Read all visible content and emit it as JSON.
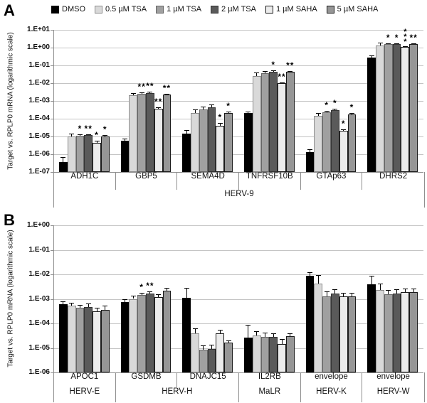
{
  "chart_data": [
    {
      "type": "bar",
      "panel_label": "A",
      "ylabel": "Target vs. RPLP0 mRNA (logarithmic scale)",
      "log_scale": true,
      "ylim_exp": [
        -7,
        1
      ],
      "grid": true,
      "legend_position": "top",
      "ytick_labels": [
        "1.E+01",
        "1.E+00",
        "1.E-01",
        "1.E-02",
        "1.E-03",
        "1.E-04",
        "1.E-05",
        "1.E-06",
        "1.E-07"
      ],
      "categories": [
        "ADH1C",
        "GBP5",
        "SEMA4D",
        "TNFRSF10B",
        "GTAp63",
        "DHRS2"
      ],
      "families": [
        {
          "label": "HERV-9",
          "cols": 6
        }
      ],
      "series": [
        {
          "name": "DMSO",
          "color": "#000000",
          "edge": "#000000",
          "values": [
            3.5e-07,
            6e-06,
            1.5e-05,
            0.00021,
            1.3e-06,
            0.27
          ],
          "err": [
            1.9,
            1.3,
            1.55,
            1.2,
            1.5,
            1.35
          ],
          "stars": [
            "",
            "",
            "",
            "",
            "",
            ""
          ]
        },
        {
          "name": "0.5 µM TSA",
          "color": "#d9d9d9",
          "edge": "#8c8c8c",
          "values": [
            1e-05,
            0.002,
            0.00021,
            0.025,
            0.00014,
            1.35
          ],
          "err": [
            1.5,
            1.35,
            1.55,
            1.55,
            1.45,
            1.45
          ],
          "stars": [
            "",
            "",
            "",
            "",
            "",
            ""
          ]
        },
        {
          "name": "1 µM TSA",
          "color": "#a0a0a0",
          "edge": "#666666",
          "values": [
            1.1e-05,
            0.0025,
            0.00033,
            0.037,
            0.00022,
            1.55
          ],
          "err": [
            1.25,
            1.2,
            1.4,
            1.3,
            1.3,
            1.15
          ],
          "stars": [
            "*",
            "**",
            "",
            "",
            "*",
            "*"
          ]
        },
        {
          "name": "2 µM TSA",
          "color": "#5a5a5a",
          "edge": "#333333",
          "values": [
            1.2e-05,
            0.0028,
            0.00045,
            0.044,
            0.0003,
            1.55
          ],
          "err": [
            1.12,
            1.15,
            1.45,
            1.15,
            1.25,
            1.15
          ],
          "stars": [
            "**",
            "**",
            "",
            "*",
            "*",
            "*"
          ]
        },
        {
          "name": "1 µM SAHA",
          "color": "#ececec",
          "edge": "#1a1a1a",
          "values": [
            4.4e-06,
            0.00035,
            4.1e-05,
            0.01,
            2e-05,
            1.1
          ],
          "err": [
            1.35,
            1.25,
            1.35,
            1.12,
            1.3,
            1.12
          ],
          "stars": [
            "*",
            "**",
            "*",
            "**",
            "*",
            [
              "*",
              "*",
              "*"
            ]
          ]
        },
        {
          "name": "5 µM SAHA",
          "color": "#969696",
          "edge": "#1a1a1a",
          "values": [
            1e-05,
            0.0023,
            0.0002,
            0.042,
            0.00018,
            1.65
          ],
          "err": [
            1.18,
            1.12,
            1.3,
            1.1,
            1.2,
            1.08
          ],
          "stars": [
            "*",
            "**",
            "*",
            "**",
            "*",
            "**"
          ]
        }
      ]
    },
    {
      "type": "bar",
      "panel_label": "B",
      "ylabel": "Target vs. RPLP0 mRNA (logarithmic scale)",
      "log_scale": true,
      "ylim_exp": [
        -6,
        0
      ],
      "grid": true,
      "legend_position": "none",
      "ytick_labels": [
        "1.E+00",
        "1.E-01",
        "1.E-02",
        "1.E-03",
        "1.E-04",
        "1.E-05",
        "1.E-06"
      ],
      "categories": [
        "APOC1",
        "GSDMB",
        "DNAJC15",
        "IL2RB",
        "envelope",
        "envelope"
      ],
      "families": [
        {
          "label": "HERV-E",
          "cols": 1
        },
        {
          "label": "HERV-H",
          "cols": 2
        },
        {
          "label": "MaLR",
          "cols": 1
        },
        {
          "label": "HERV-K",
          "cols": 1
        },
        {
          "label": "HERV-W",
          "cols": 1
        }
      ],
      "series": [
        {
          "name": "DMSO",
          "color": "#000000",
          "edge": "#000000",
          "values": [
            0.0006,
            0.00075,
            0.0011,
            2.7e-05,
            0.0085,
            0.004
          ],
          "err": [
            1.3,
            1.25,
            2.6,
            3.2,
            1.4,
            2.2
          ],
          "stars": [
            "",
            "",
            "",
            "",
            "",
            ""
          ]
        },
        {
          "name": "0.5 µM TSA",
          "color": "#d9d9d9",
          "edge": "#8c8c8c",
          "values": [
            0.00052,
            0.001,
            4e-05,
            3.2e-05,
            0.0043,
            0.0023
          ],
          "err": [
            1.3,
            1.35,
            1.6,
            1.55,
            2.2,
            1.8
          ],
          "stars": [
            "",
            "",
            "",
            "",
            "",
            ""
          ]
        },
        {
          "name": "1 µM TSA",
          "color": "#a0a0a0",
          "edge": "#666666",
          "values": [
            0.00042,
            0.0014,
            8.5e-06,
            2.8e-05,
            0.0013,
            0.0015
          ],
          "err": [
            1.35,
            1.3,
            1.45,
            1.5,
            1.5,
            1.5
          ],
          "stars": [
            "",
            "*",
            "",
            "",
            "",
            ""
          ]
        },
        {
          "name": "2 µM TSA",
          "color": "#5a5a5a",
          "edge": "#333333",
          "values": [
            0.00045,
            0.0016,
            9e-06,
            2.8e-05,
            0.0017,
            0.0017
          ],
          "err": [
            1.4,
            1.25,
            1.5,
            1.45,
            1.45,
            1.45
          ],
          "stars": [
            "",
            "**",
            "",
            "",
            "",
            ""
          ]
        },
        {
          "name": "1 µM SAHA",
          "color": "#ececec",
          "edge": "#1a1a1a",
          "values": [
            0.00032,
            0.00115,
            4e-05,
            1.4e-05,
            0.0013,
            0.0019
          ],
          "err": [
            1.4,
            1.35,
            1.35,
            1.6,
            1.4,
            1.4
          ],
          "stars": [
            "",
            "",
            "",
            "",
            "",
            ""
          ]
        },
        {
          "name": "5 µM SAHA",
          "color": "#969696",
          "edge": "#1a1a1a",
          "values": [
            0.00036,
            0.0022,
            1.6e-05,
            3e-05,
            0.0013,
            0.0019
          ],
          "err": [
            1.5,
            1.3,
            1.3,
            1.35,
            1.4,
            1.4
          ],
          "stars": [
            "",
            "",
            "",
            "",
            "",
            ""
          ]
        }
      ]
    }
  ]
}
